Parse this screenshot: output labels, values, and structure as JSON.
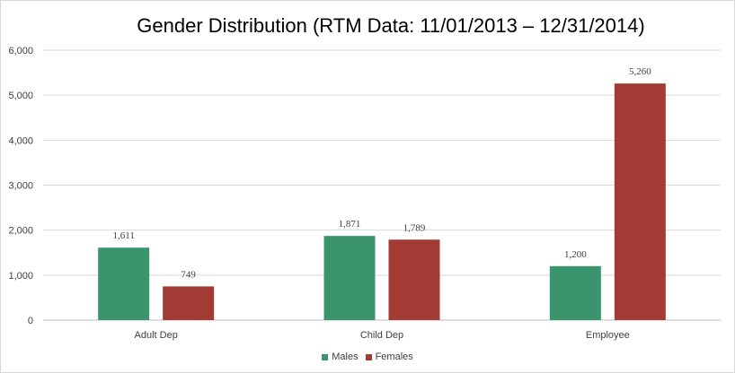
{
  "chart_data": {
    "type": "bar",
    "title": "Gender Distribution (RTM Data: 11/01/2013 – 12/31/2014)",
    "categories": [
      "Adult Dep",
      "Child Dep",
      "Employee"
    ],
    "series": [
      {
        "name": "Males",
        "values": [
          1611,
          1871,
          1200
        ],
        "labels": [
          "1,611",
          "1,871",
          "1,200"
        ],
        "color": "#3a946d"
      },
      {
        "name": "Females",
        "values": [
          749,
          1789,
          5260
        ],
        "labels": [
          "749",
          "1,789",
          "5,260"
        ],
        "color": "#a23b34"
      }
    ],
    "ylim": [
      0,
      6000
    ],
    "yticks": [
      0,
      1000,
      2000,
      3000,
      4000,
      5000,
      6000
    ],
    "ytick_labels": [
      "0",
      "1,000",
      "2,000",
      "3,000",
      "4,000",
      "5,000",
      "6,000"
    ],
    "grid": true,
    "legend_position": "bottom"
  }
}
